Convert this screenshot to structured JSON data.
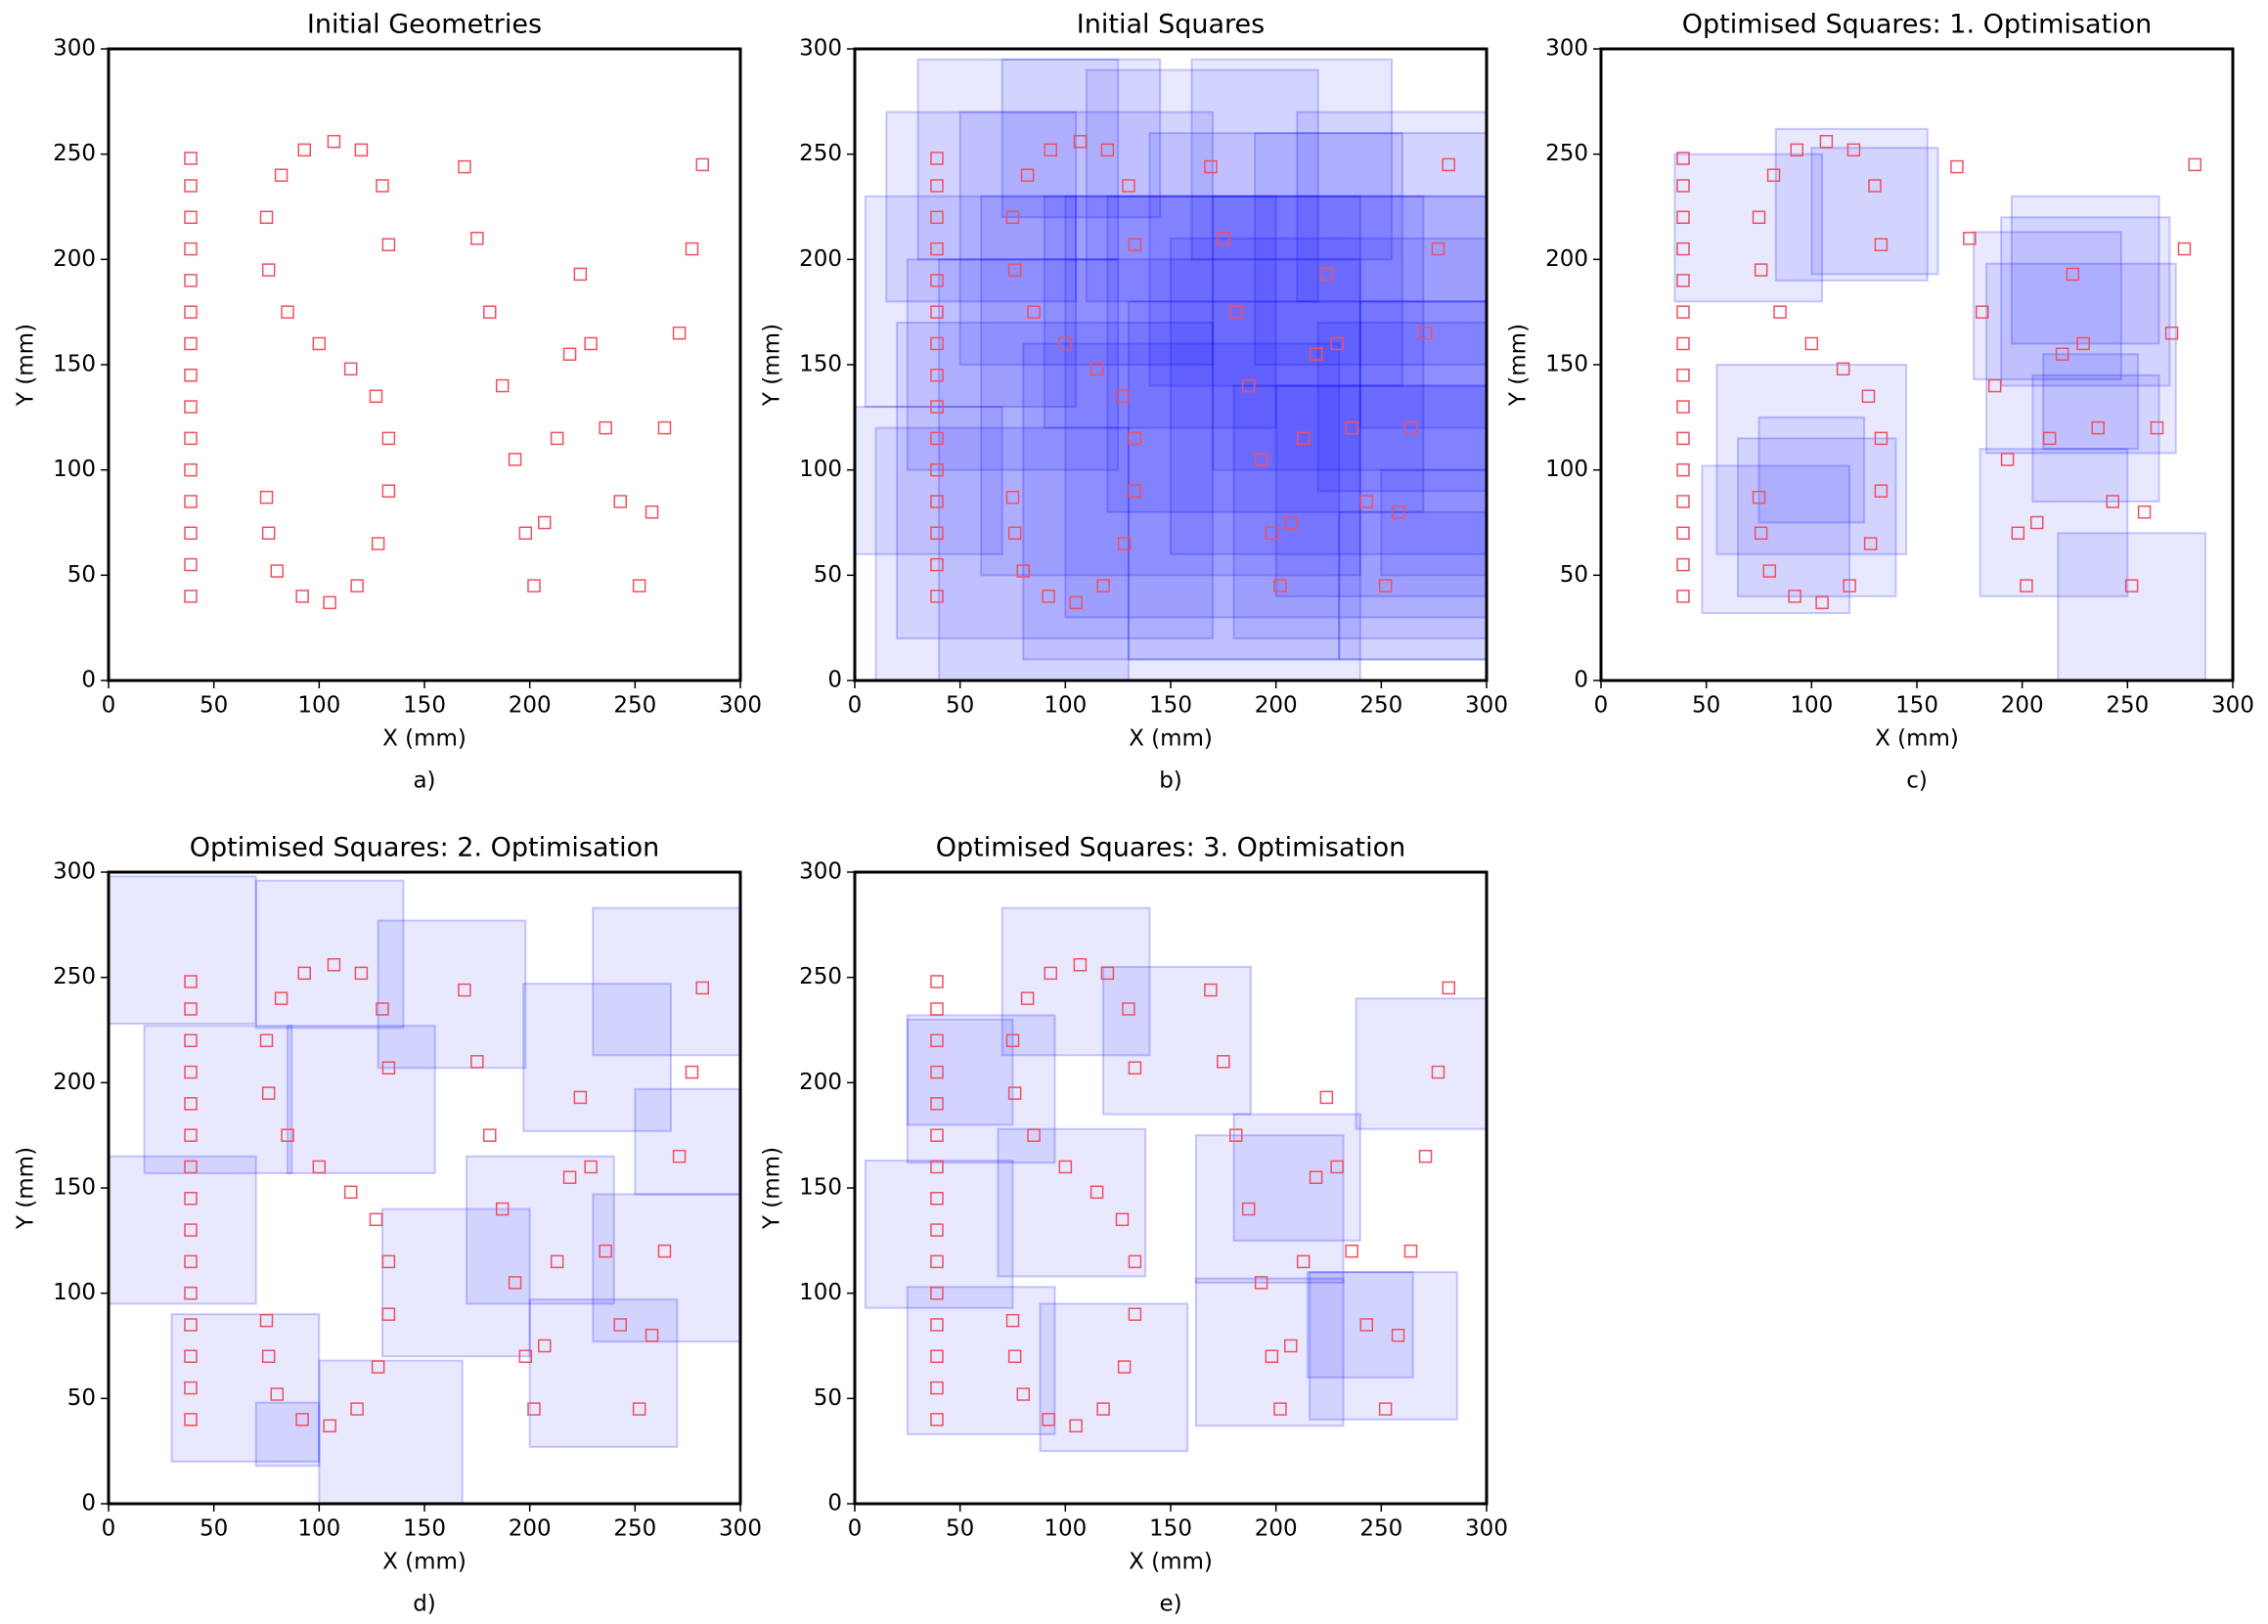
{
  "chart_data": [
    {
      "type": "scatter",
      "title": "Initial Geometries",
      "x_label": "X (mm)",
      "y_label": "Y (mm)",
      "caption": "a)",
      "xlim": [
        0,
        300
      ],
      "ylim": [
        0,
        300
      ],
      "xticks": [
        0,
        50,
        100,
        150,
        200,
        250,
        300
      ],
      "yticks": [
        0,
        50,
        100,
        150,
        200,
        250,
        300
      ],
      "points": {
        "color": "#f0505f",
        "x": [
          39,
          39,
          39,
          39,
          39,
          39,
          39,
          39,
          39,
          39,
          39,
          39,
          39,
          39,
          39,
          133,
          130,
          120,
          107,
          93,
          82,
          75,
          76,
          85,
          100,
          115,
          127,
          133,
          133,
          128,
          118,
          105,
          92,
          80,
          76,
          75,
          169,
          175,
          181,
          187,
          193,
          198,
          202,
          207,
          213,
          219,
          224,
          229,
          236,
          243,
          252,
          258,
          264,
          271,
          277,
          282
        ],
        "y": [
          40,
          55,
          70,
          85,
          100,
          115,
          130,
          145,
          160,
          175,
          190,
          205,
          220,
          235,
          248,
          207,
          235,
          252,
          256,
          252,
          240,
          220,
          195,
          175,
          160,
          148,
          135,
          115,
          90,
          65,
          45,
          37,
          40,
          52,
          70,
          87,
          244,
          210,
          175,
          140,
          105,
          70,
          45,
          75,
          115,
          155,
          193,
          160,
          120,
          85,
          45,
          80,
          120,
          165,
          205,
          245
        ]
      }
    },
    {
      "type": "scatter",
      "title": "Initial Squares",
      "x_label": "X (mm)",
      "y_label": "Y (mm)",
      "caption": "b)",
      "xlim": [
        0,
        300
      ],
      "ylim": [
        0,
        300
      ],
      "xticks": [
        0,
        50,
        100,
        150,
        200,
        250,
        300
      ],
      "yticks": [
        0,
        50,
        100,
        150,
        200,
        250,
        300
      ],
      "points": {
        "color": "#f0505f",
        "x": [
          39,
          39,
          39,
          39,
          39,
          39,
          39,
          39,
          39,
          39,
          39,
          39,
          39,
          39,
          39,
          133,
          130,
          120,
          107,
          93,
          82,
          75,
          76,
          85,
          100,
          115,
          127,
          133,
          133,
          128,
          118,
          105,
          92,
          80,
          76,
          75,
          169,
          175,
          181,
          187,
          193,
          198,
          202,
          207,
          213,
          219,
          224,
          229,
          236,
          243,
          252,
          258,
          264,
          271,
          277,
          282
        ],
        "y": [
          40,
          55,
          70,
          85,
          100,
          115,
          130,
          145,
          160,
          175,
          190,
          205,
          220,
          235,
          248,
          207,
          235,
          252,
          256,
          252,
          240,
          220,
          195,
          175,
          160,
          148,
          135,
          115,
          90,
          65,
          45,
          37,
          40,
          52,
          70,
          87,
          244,
          210,
          175,
          140,
          105,
          70,
          45,
          75,
          115,
          155,
          193,
          160,
          120,
          85,
          45,
          80,
          120,
          165,
          205,
          245
        ]
      },
      "squares": {
        "color": "#0000ff",
        "x": [
          0,
          5,
          10,
          15,
          20,
          25,
          30,
          40,
          50,
          60,
          70,
          80,
          90,
          100,
          110,
          120,
          130,
          140,
          150,
          160,
          170,
          180,
          190,
          200,
          210,
          220,
          230,
          240,
          250
        ],
        "y": [
          60,
          130,
          0,
          180,
          20,
          100,
          200,
          0,
          150,
          50,
          220,
          10,
          120,
          30,
          180,
          80,
          10,
          140,
          60,
          200,
          100,
          20,
          150,
          40,
          180,
          90,
          10,
          120,
          50
        ],
        "size": [
          70,
          100,
          120,
          90,
          150,
          100,
          95,
          200,
          120,
          180,
          75,
          150,
          110,
          200,
          110,
          150,
          170,
          120,
          150,
          95,
          130,
          120,
          110,
          100,
          90,
          80,
          70,
          60,
          50
        ]
      }
    },
    {
      "type": "scatter",
      "title": "Optimised Squares:  1. Optimisation",
      "x_label": "X (mm)",
      "y_label": "Y (mm)",
      "caption": "c)",
      "xlim": [
        0,
        300
      ],
      "ylim": [
        0,
        300
      ],
      "xticks": [
        0,
        50,
        100,
        150,
        200,
        250,
        300
      ],
      "yticks": [
        0,
        50,
        100,
        150,
        200,
        250,
        300
      ],
      "points": {
        "color": "#f0505f",
        "x": [
          39,
          39,
          39,
          39,
          39,
          39,
          39,
          39,
          39,
          39,
          39,
          39,
          39,
          39,
          39,
          133,
          130,
          120,
          107,
          93,
          82,
          75,
          76,
          85,
          100,
          115,
          127,
          133,
          133,
          128,
          118,
          105,
          92,
          80,
          76,
          75,
          169,
          175,
          181,
          187,
          193,
          198,
          202,
          207,
          213,
          219,
          224,
          229,
          236,
          243,
          252,
          258,
          264,
          271,
          277,
          282
        ],
        "y": [
          40,
          55,
          70,
          85,
          100,
          115,
          130,
          145,
          160,
          175,
          190,
          205,
          220,
          235,
          248,
          207,
          235,
          252,
          256,
          252,
          240,
          220,
          195,
          175,
          160,
          148,
          135,
          115,
          90,
          65,
          45,
          37,
          40,
          52,
          70,
          87,
          244,
          210,
          175,
          140,
          105,
          70,
          45,
          75,
          115,
          155,
          193,
          160,
          120,
          85,
          45,
          80,
          120,
          165,
          205,
          245
        ]
      },
      "squares": {
        "color": "#0000ff",
        "x": [
          35,
          83,
          100,
          177,
          190,
          183,
          205,
          210,
          217,
          180,
          48,
          55,
          65,
          75,
          195
        ],
        "y": [
          180,
          190,
          193,
          143,
          140,
          108,
          85,
          110,
          0,
          40,
          32,
          60,
          40,
          75,
          160
        ],
        "size": [
          70,
          72,
          60,
          70,
          80,
          90,
          60,
          45,
          70,
          70,
          70,
          90,
          75,
          50,
          70
        ]
      }
    },
    {
      "type": "scatter",
      "title": "Optimised Squares: 2. Optimisation",
      "x_label": "X (mm)",
      "y_label": "Y (mm)",
      "caption": "d)",
      "xlim": [
        0,
        300
      ],
      "ylim": [
        0,
        300
      ],
      "xticks": [
        0,
        50,
        100,
        150,
        200,
        250,
        300
      ],
      "yticks": [
        0,
        50,
        100,
        150,
        200,
        250,
        300
      ],
      "points": {
        "color": "#f0505f",
        "x": [
          39,
          39,
          39,
          39,
          39,
          39,
          39,
          39,
          39,
          39,
          39,
          39,
          39,
          39,
          39,
          133,
          130,
          120,
          107,
          93,
          82,
          75,
          76,
          85,
          100,
          115,
          127,
          133,
          133,
          128,
          118,
          105,
          92,
          80,
          76,
          75,
          169,
          175,
          181,
          187,
          193,
          198,
          202,
          207,
          213,
          219,
          224,
          229,
          236,
          243,
          252,
          258,
          264,
          271,
          277,
          282
        ],
        "y": [
          40,
          55,
          70,
          85,
          100,
          115,
          130,
          145,
          160,
          175,
          190,
          205,
          220,
          235,
          248,
          207,
          235,
          252,
          256,
          252,
          240,
          220,
          195,
          175,
          160,
          148,
          135,
          115,
          90,
          65,
          45,
          37,
          40,
          52,
          70,
          87,
          244,
          210,
          175,
          140,
          105,
          70,
          45,
          75,
          115,
          155,
          193,
          160,
          120,
          85,
          45,
          80,
          120,
          165,
          205,
          245
        ]
      },
      "squares": {
        "color": "#0000ff",
        "x": [
          0,
          70,
          128,
          197,
          230,
          17,
          85,
          0,
          30,
          70,
          100,
          130,
          200,
          230,
          170,
          250
        ],
        "y": [
          228,
          226,
          207,
          177,
          213,
          157,
          157,
          95,
          20,
          18,
          0,
          70,
          27,
          77,
          95,
          147
        ],
        "size": [
          70,
          70,
          70,
          70,
          70,
          70,
          70,
          70,
          70,
          30,
          68,
          70,
          70,
          70,
          70,
          50
        ]
      }
    },
    {
      "type": "scatter",
      "title": "Optimised Squares: 3. Optimisation",
      "x_label": "X (mm)",
      "y_label": "Y (mm)",
      "caption": "e)",
      "xlim": [
        0,
        300
      ],
      "ylim": [
        0,
        300
      ],
      "xticks": [
        0,
        50,
        100,
        150,
        200,
        250,
        300
      ],
      "yticks": [
        0,
        50,
        100,
        150,
        200,
        250,
        300
      ],
      "points": {
        "color": "#f0505f",
        "x": [
          39,
          39,
          39,
          39,
          39,
          39,
          39,
          39,
          39,
          39,
          39,
          39,
          39,
          39,
          39,
          133,
          130,
          120,
          107,
          93,
          82,
          75,
          76,
          85,
          100,
          115,
          127,
          133,
          133,
          128,
          118,
          105,
          92,
          80,
          76,
          75,
          169,
          175,
          181,
          187,
          193,
          198,
          202,
          207,
          213,
          219,
          224,
          229,
          236,
          243,
          252,
          258,
          264,
          271,
          277,
          282
        ],
        "y": [
          40,
          55,
          70,
          85,
          100,
          115,
          130,
          145,
          160,
          175,
          190,
          205,
          220,
          235,
          248,
          207,
          235,
          252,
          256,
          252,
          240,
          220,
          195,
          175,
          160,
          148,
          135,
          115,
          90,
          65,
          45,
          37,
          40,
          52,
          70,
          87,
          244,
          210,
          175,
          140,
          105,
          70,
          45,
          75,
          115,
          155,
          193,
          160,
          120,
          85,
          45,
          80,
          120,
          165,
          205,
          245
        ]
      },
      "squares": {
        "color": "#0000ff",
        "x": [
          70,
          118,
          25,
          5,
          68,
          25,
          88,
          162,
          180,
          238,
          216,
          162,
          215,
          25
        ],
        "y": [
          213,
          185,
          162,
          93,
          108,
          33,
          25,
          105,
          125,
          178,
          40,
          37,
          60,
          180
        ],
        "size": [
          70,
          70,
          70,
          70,
          70,
          70,
          70,
          70,
          60,
          62,
          70,
          70,
          50,
          50
        ]
      }
    }
  ]
}
